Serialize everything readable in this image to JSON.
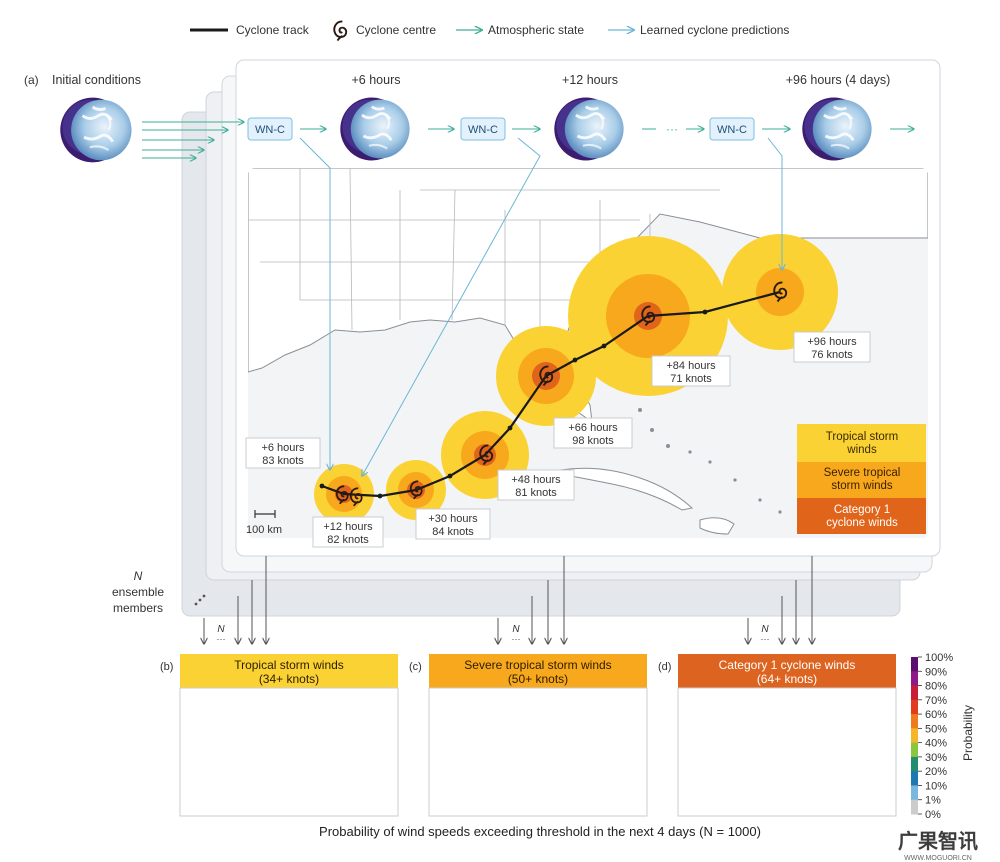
{
  "legend": {
    "track": "Cyclone track",
    "centre": "Cyclone centre",
    "atmos": "Atmospheric state",
    "learned": "Learned cyclone predictions"
  },
  "panel_a": {
    "label": "(a)",
    "initial": "Initial conditions",
    "times": [
      "+6 hours",
      "+12 hours",
      "+96 hours (4 days)"
    ],
    "model": "WN-C",
    "dots": "···",
    "ensemble_n": "N",
    "ensemble_line1": "ensemble",
    "ensemble_line2": "members",
    "scale": "100 km",
    "track_labels": [
      {
        "t": "+6 hours",
        "k": "83 knots"
      },
      {
        "t": "+12 hours",
        "k": "82 knots"
      },
      {
        "t": "+30 hours",
        "k": "84 knots"
      },
      {
        "t": "+48 hours",
        "k": "81 knots"
      },
      {
        "t": "+66 hours",
        "k": "98 knots"
      },
      {
        "t": "+84 hours",
        "k": "71 knots"
      },
      {
        "t": "+96 hours",
        "k": "76 knots"
      }
    ],
    "wind_legend": [
      {
        "l1": "Tropical storm",
        "l2": "winds",
        "color": "#fbd234"
      },
      {
        "l1": "Severe tropical",
        "l2": "storm winds",
        "color": "#f8a81c"
      },
      {
        "l1": "Category 1",
        "l2": "cyclone winds",
        "color": "#e0651a"
      }
    ]
  },
  "subpanels": [
    {
      "label": "(b)",
      "t1": "Tropical storm winds",
      "t2": "(34+ knots)",
      "color": "#fbd234"
    },
    {
      "label": "(c)",
      "t1": "Severe tropical storm winds",
      "t2": "(50+ knots)",
      "color": "#f8a81c"
    },
    {
      "label": "(d)",
      "t1": "Category 1 cyclone winds",
      "t2": "(64+ knots)",
      "color": "#dd6420"
    }
  ],
  "arrow_n": "N",
  "colorbar": {
    "title": "Probability",
    "ticks": [
      "100%",
      "90%",
      "80%",
      "70%",
      "60%",
      "50%",
      "40%",
      "30%",
      "20%",
      "10%",
      "1%",
      "0%"
    ],
    "colors": [
      "#5b0f6e",
      "#8e1a8a",
      "#c81f37",
      "#e23b1f",
      "#f07b1d",
      "#f5b62a",
      "#8cc63e",
      "#1f8f6e",
      "#1f78b4",
      "#79b7de",
      "#cccccc"
    ]
  },
  "caption": "Probability of wind speeds exceeding threshold in the next 4 days (N = 1000)",
  "watermark": {
    "main": "广果智讯",
    "sub": "WWW.MOGUORI.CN"
  }
}
